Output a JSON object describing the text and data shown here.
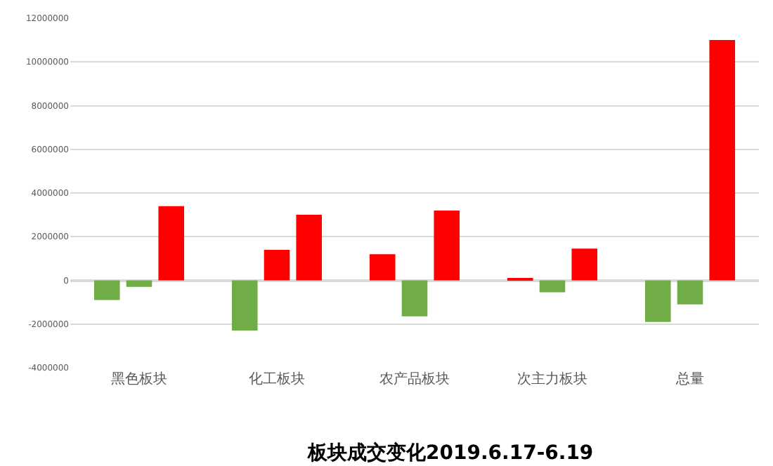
{
  "chart_data": {
    "type": "bar",
    "title": "板块成交变化2019.6.17-6.19",
    "categories": [
      "黑色板块",
      "化工板块",
      "农产品板块",
      "次主力板块",
      "总量"
    ],
    "series": [
      {
        "colors": [
          "#70ad47",
          "#70ad47",
          "#ff0000",
          "#ff0000",
          "#70ad47"
        ],
        "values": [
          -900000,
          -2300000,
          1200000,
          100000,
          -1900000
        ]
      },
      {
        "colors": [
          "#70ad47",
          "#ff0000",
          "#70ad47",
          "#70ad47",
          "#70ad47"
        ],
        "values": [
          -300000,
          1400000,
          -1650000,
          -550000,
          -1100000
        ]
      },
      {
        "colors": [
          "#ff0000",
          "#ff0000",
          "#ff0000",
          "#ff0000",
          "#ff0000"
        ],
        "values": [
          3400000,
          3000000,
          3200000,
          1450000,
          11000000
        ]
      }
    ],
    "ylim": [
      -4000000,
      12000000
    ],
    "yticks": [
      -4000000,
      -2000000,
      0,
      2000000,
      4000000,
      6000000,
      8000000,
      10000000,
      12000000
    ],
    "grid": "y"
  }
}
